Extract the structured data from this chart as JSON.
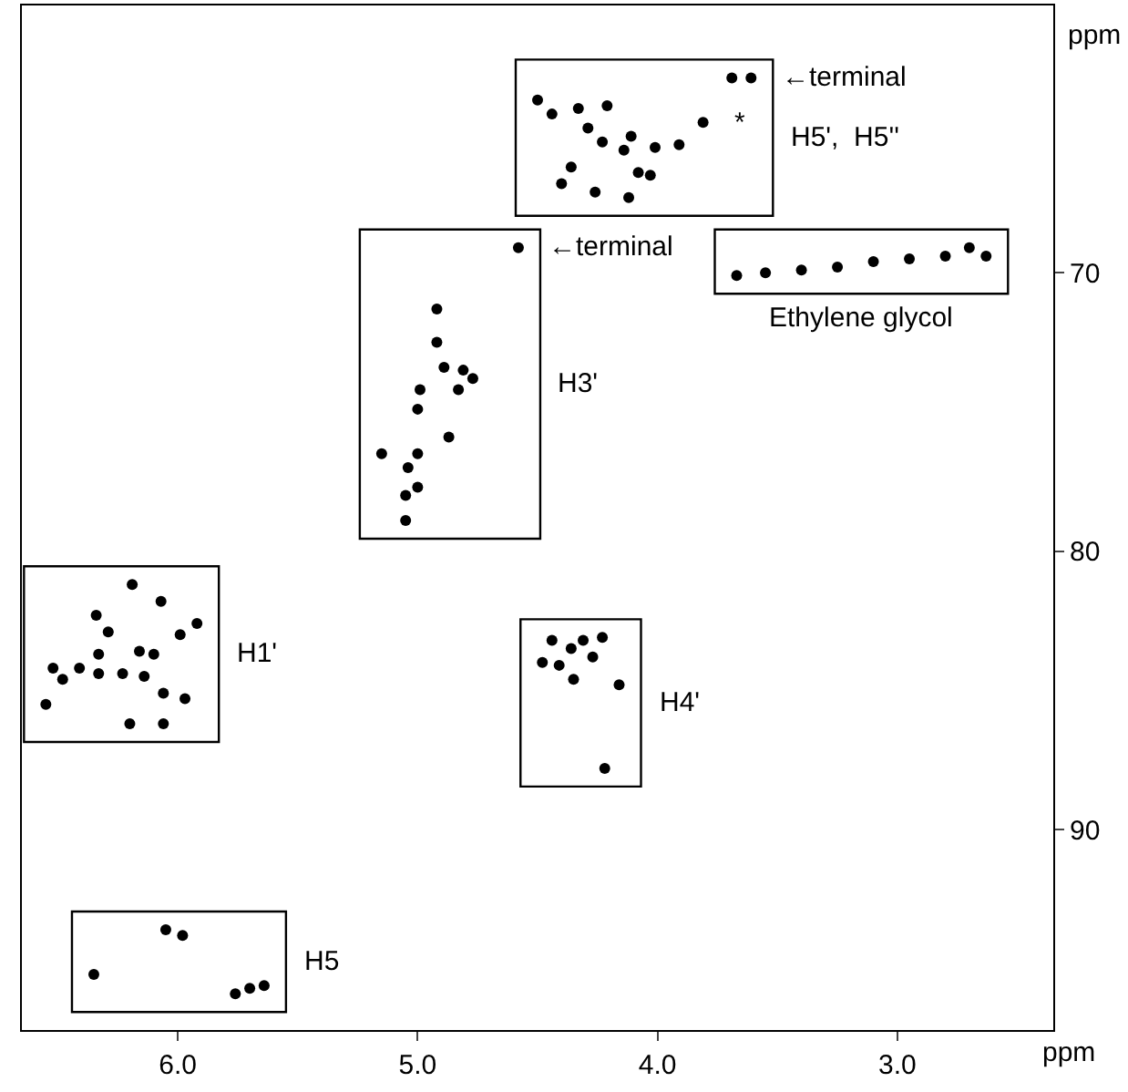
{
  "chart_data": {
    "type": "scatter",
    "xlabel": "ppm",
    "ylabel": "ppm",
    "xlim": [
      6.65,
      2.35
    ],
    "ylim": [
      97.2,
      60.4
    ],
    "xticks": [
      {
        "value": 6,
        "label": "6.0"
      },
      {
        "value": 5,
        "label": "5.0"
      },
      {
        "value": 4,
        "label": "4.0"
      },
      {
        "value": 3,
        "label": "3.0"
      }
    ],
    "yticks": [
      70,
      80,
      90
    ],
    "grid": false,
    "legend": false,
    "marker": "circle",
    "series": [
      {
        "name": "H5",
        "color": "#000000",
        "x": [
          6.35,
          6.05,
          5.98,
          5.76,
          5.7,
          5.64
        ],
        "values": [
          95.2,
          93.6,
          93.8,
          95.9,
          95.7,
          95.6
        ]
      },
      {
        "name": "H1'",
        "color": "#000000",
        "x": [
          6.19,
          6.07,
          6.34,
          5.92,
          5.99,
          6.29,
          6.33,
          6.16,
          6.1,
          6.52,
          6.48,
          6.41,
          6.33,
          6.23,
          6.14,
          6.06,
          5.97,
          6.55,
          6.2,
          6.06
        ],
        "values": [
          81.2,
          81.8,
          82.3,
          82.6,
          83.0,
          82.9,
          83.7,
          83.6,
          83.7,
          84.2,
          84.6,
          84.2,
          84.4,
          84.4,
          84.5,
          85.1,
          85.3,
          85.5,
          86.2,
          86.2
        ]
      },
      {
        "name": "H3'",
        "color": "#000000",
        "x": [
          4.58,
          4.92,
          4.92,
          4.89,
          4.81,
          4.77,
          4.83,
          4.99,
          5.0,
          4.87,
          5.0,
          5.04,
          5.15,
          5.0,
          5.05,
          5.05
        ],
        "values": [
          69.1,
          71.3,
          72.5,
          73.4,
          73.5,
          73.8,
          74.2,
          74.2,
          74.9,
          75.9,
          76.5,
          77.0,
          76.5,
          77.7,
          78.0,
          78.9
        ]
      },
      {
        "name": "H4'",
        "color": "#000000",
        "x": [
          4.48,
          4.44,
          4.41,
          4.36,
          4.35,
          4.31,
          4.27,
          4.23,
          4.16,
          4.22
        ],
        "values": [
          84.0,
          83.2,
          84.1,
          83.5,
          84.6,
          83.2,
          83.8,
          83.1,
          84.8,
          87.8
        ]
      },
      {
        "name": "H5',  H5''",
        "color": "#000000",
        "x": [
          3.69,
          3.61,
          4.5,
          4.44,
          4.33,
          4.21,
          4.29,
          4.23,
          4.11,
          4.14,
          4.01,
          3.91,
          3.81,
          4.36,
          4.08,
          4.4,
          4.26,
          4.12,
          4.03
        ],
        "values": [
          63.0,
          63.0,
          63.8,
          64.3,
          64.1,
          64.0,
          64.8,
          65.3,
          65.1,
          65.6,
          65.5,
          65.4,
          64.6,
          66.2,
          66.4,
          66.8,
          67.1,
          67.3,
          66.5
        ]
      },
      {
        "name": "Ethylene glycol",
        "color": "#000000",
        "x": [
          3.67,
          3.55,
          3.4,
          3.25,
          3.1,
          2.95,
          2.8,
          2.7,
          2.63
        ],
        "values": [
          70.1,
          70.0,
          69.9,
          69.8,
          69.6,
          69.5,
          69.4,
          69.1,
          69.4
        ]
      }
    ],
    "annotations": [
      {
        "text": "←terminal",
        "x": 4.58,
        "y": 69.1
      },
      {
        "text": "←terminal",
        "x": 3.61,
        "y": 63.0
      },
      {
        "text": "*",
        "x": 3.81,
        "y": 64.6
      }
    ]
  }
}
